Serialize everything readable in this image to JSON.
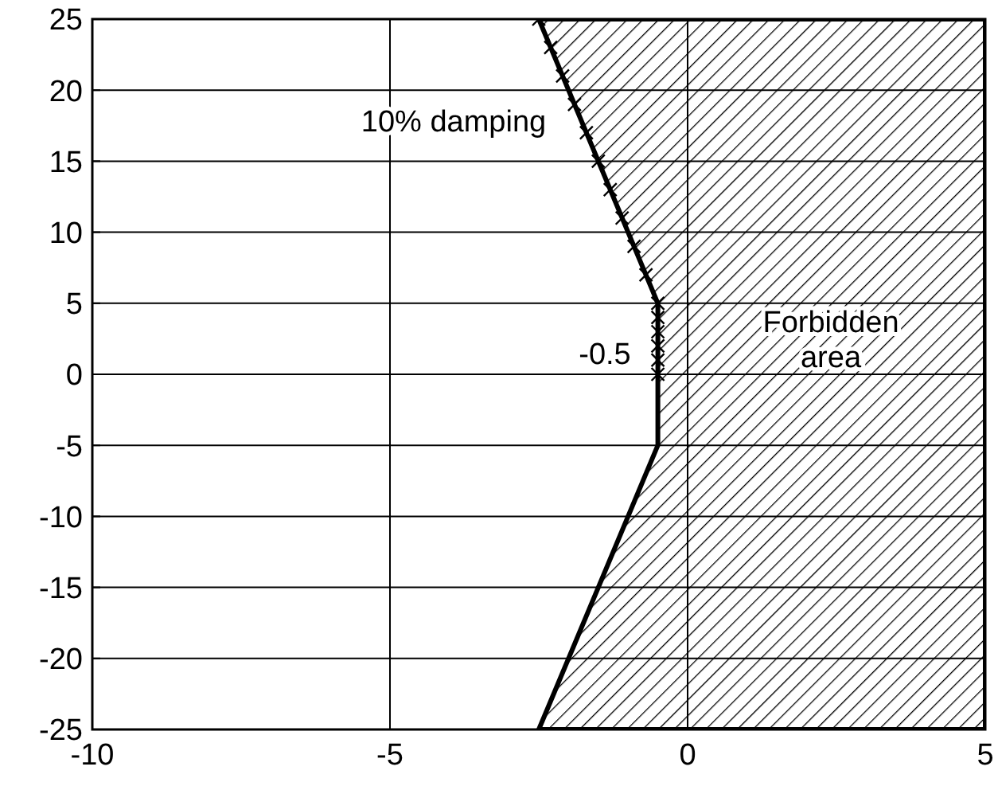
{
  "chart_data": {
    "type": "scatter",
    "xlim": [
      -10,
      5
    ],
    "ylim": [
      -25,
      25
    ],
    "xticks": [
      -10,
      -5,
      0,
      5
    ],
    "yticks": [
      -25,
      -20,
      -15,
      -10,
      -5,
      0,
      5,
      10,
      15,
      20,
      25
    ],
    "grid": true,
    "series": [
      {
        "type": "area",
        "color": "#000000",
        "x": [
          -2.5,
          -0.5,
          -0.5,
          -2.5,
          5,
          5
        ],
        "values": [
          -25,
          -5,
          5,
          25,
          25,
          -25
        ]
      },
      {
        "color": "#000000",
        "marker": "cross",
        "x": [
          -0.5,
          -0.5,
          -0.5,
          -0.5,
          -0.5,
          -0.5,
          -0.7,
          -0.9,
          -1.1,
          -1.3,
          -1.5,
          -1.7,
          -1.9,
          -2.1,
          -2.3,
          -2.5
        ],
        "values": [
          0,
          1,
          2,
          3,
          4,
          5,
          7,
          9,
          11,
          13,
          15,
          17,
          19,
          21,
          23,
          25
        ]
      }
    ],
    "annotations": [
      "10% damping",
      "-0.5",
      "Forbidden area"
    ]
  }
}
